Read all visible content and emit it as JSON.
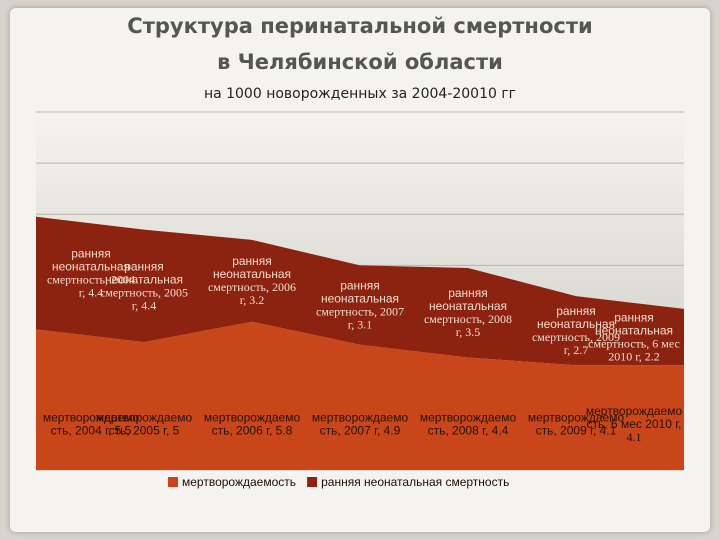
{
  "page": {
    "title_line1": "Структура перинатальной смертности",
    "title_line2": "в Челябинской области",
    "subtitle": "на 1000 новорожденных за 2004-20010 гг"
  },
  "chart_data": {
    "type": "area",
    "stacked": true,
    "title": "Структура перинатальной смертности в Челябинской области",
    "subtitle": "на 1000 новорожденных за 2004-20010 гг",
    "categories": [
      "2004 г",
      "2005 г",
      "2006 г",
      "2007 г",
      "2008 г",
      "2009 г",
      "2010 г"
    ],
    "series": [
      {
        "name": "мертворождаемость",
        "color": "#c9461a",
        "values": [
          5.5,
          5,
          5.8,
          4.9,
          4.4,
          4.1,
          4.1
        ],
        "point_labels": [
          [
            "мертворождаемо",
            "сть, 2004 г, 5.5"
          ],
          [
            "мертворождаемо",
            "сть, 2005 г, 5"
          ],
          [
            "мертворождаемо",
            "сть, 2006 г, 5.8"
          ],
          [
            "мертворождаемо",
            "сть, 2007 г, 4.9"
          ],
          [
            "мертворождаемо",
            "сть, 2008 г, 4.4"
          ],
          [
            "мертворождаемо",
            "сть, 2009 г, 4.1"
          ],
          [
            "мертворождаемо",
            "сть, 6 мес 2010 г,",
            "4.1"
          ]
        ]
      },
      {
        "name": "ранняя неонатальная смертность",
        "color": "#8c2210",
        "values": [
          4.4,
          4.4,
          3.2,
          3.1,
          3.5,
          2.7,
          2.2
        ],
        "point_labels": [
          [
            "ранняя",
            "неонатальная",
            "смертность, 2004",
            "г, 4.4"
          ],
          [
            "ранняя",
            "неонатальная",
            "смертность, 2005",
            "г, 4.4"
          ],
          [
            "ранняя",
            "неонатальная",
            "смертность, 2006",
            "г, 3.2"
          ],
          [
            "ранняя",
            "неонатальная",
            "смертность, 2007",
            "г, 3.1"
          ],
          [
            "ранняя",
            "неонатальная",
            "смертность, 2008",
            "г, 3.5"
          ],
          [
            "ранняя",
            "неонатальная",
            "смертность, 2009",
            "г, 2.7"
          ],
          [
            "ранняя",
            "неонатальная",
            "смертность, 6 мес",
            "2010 г, 2.2"
          ]
        ]
      }
    ],
    "ylim": [
      0,
      14
    ],
    "grid": true,
    "legend_position": "bottom",
    "background_gradient": [
      "#f4f3ef",
      "#c8c5bd"
    ]
  }
}
